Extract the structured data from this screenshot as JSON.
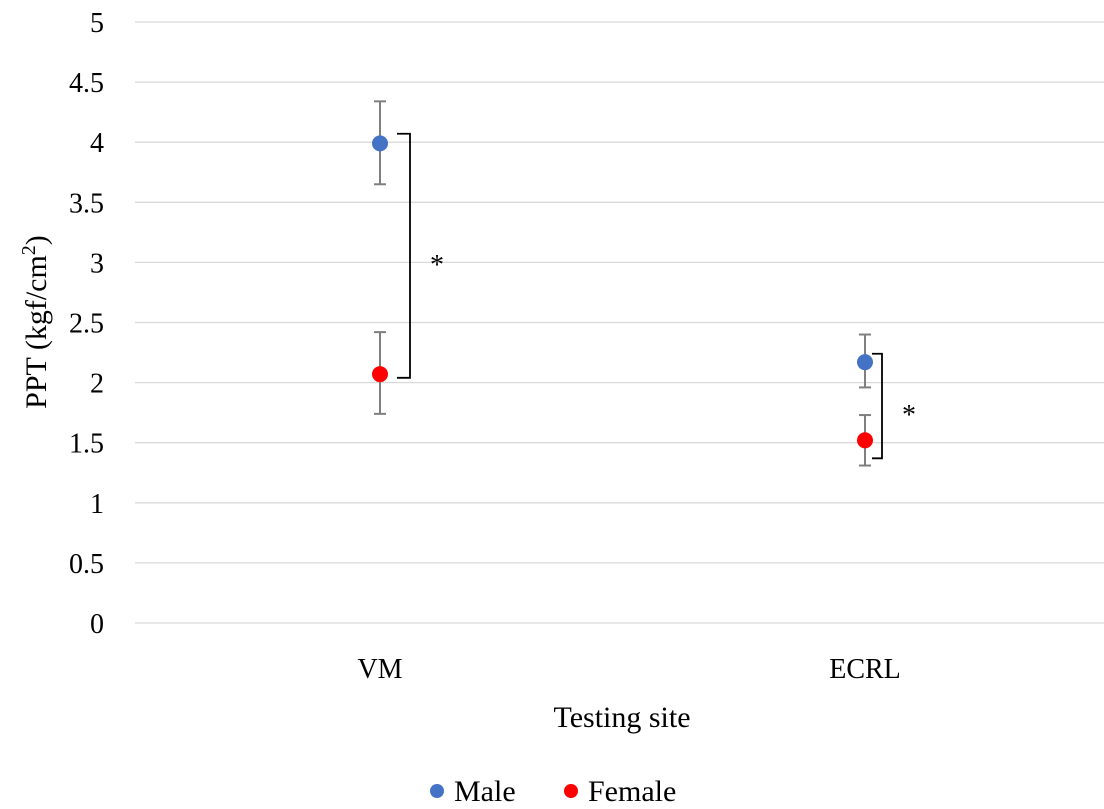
{
  "chart_data": {
    "type": "scatter",
    "categories": [
      "VM",
      "ECRL"
    ],
    "ylabel_main": "PPT (kgf/cm",
    "ylabel_sup": "2",
    "ylabel_end": ")",
    "xlabel": "Testing site",
    "ylim": [
      0,
      5
    ],
    "yticks": [
      "0",
      "0.5",
      "1",
      "1.5",
      "2",
      "2.5",
      "3",
      "3.5",
      "4",
      "4.5",
      "5"
    ],
    "grid": true,
    "legend_placement": "bottom-center",
    "series": [
      {
        "name": "Male",
        "color": "#4472C4",
        "values": [
          3.99,
          2.17
        ],
        "error_upper": [
          4.34,
          2.4
        ],
        "error_lower": [
          3.65,
          1.96
        ]
      },
      {
        "name": "Female",
        "color": "#FF0000",
        "values": [
          2.07,
          1.52
        ],
        "error_upper": [
          2.42,
          1.73
        ],
        "error_lower": [
          1.74,
          1.31
        ]
      }
    ],
    "annotations": [
      {
        "category": "VM",
        "text": "*",
        "from": 4.07,
        "to": 2.04
      },
      {
        "category": "ECRL",
        "text": "*",
        "from": 2.24,
        "to": 1.37
      }
    ]
  }
}
